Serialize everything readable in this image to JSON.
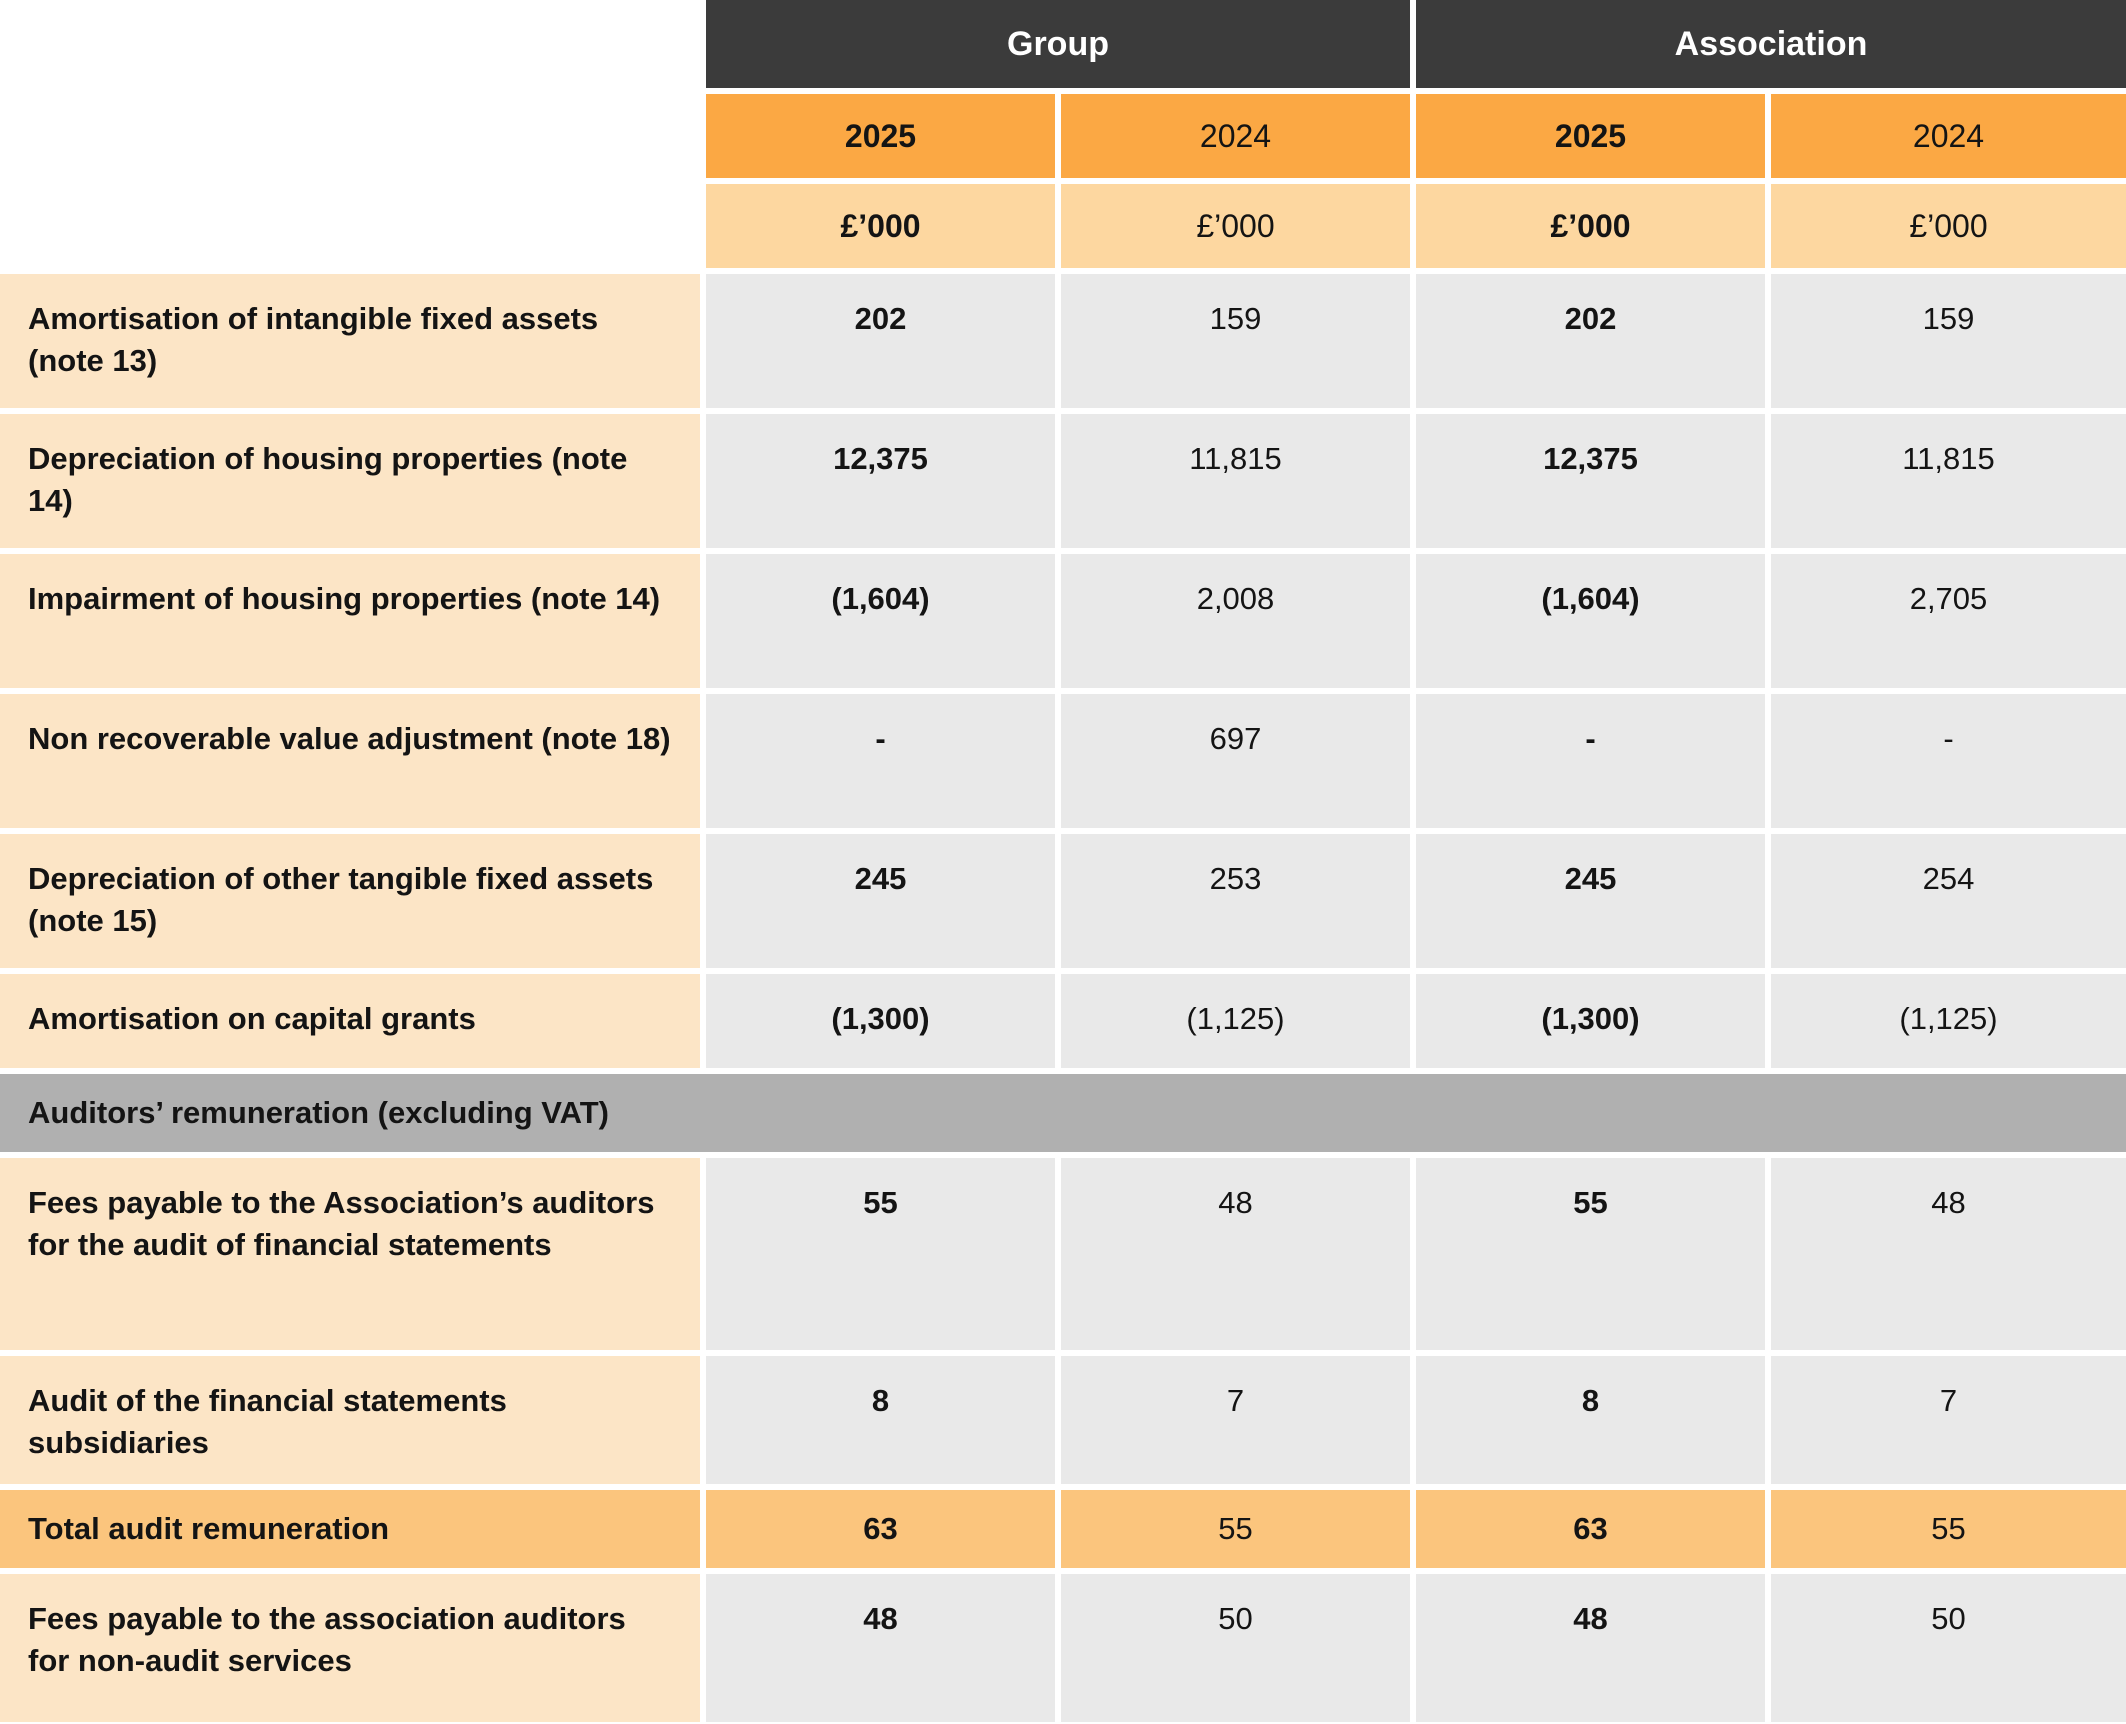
{
  "table": {
    "column_groups": [
      {
        "label": "Group"
      },
      {
        "label": "Association"
      }
    ],
    "year_headers": [
      {
        "label": "2025",
        "emphasis": true
      },
      {
        "label": "2024",
        "emphasis": false
      },
      {
        "label": "2025",
        "emphasis": true
      },
      {
        "label": "2024",
        "emphasis": false
      }
    ],
    "unit_headers": [
      {
        "label": "£’000",
        "emphasis": true
      },
      {
        "label": "£’000",
        "emphasis": false
      },
      {
        "label": "£’000",
        "emphasis": true
      },
      {
        "label": "£’000",
        "emphasis": false
      }
    ],
    "rows": [
      {
        "type": "data",
        "label": "Amortisation of intangible fixed assets (note 13)",
        "values": [
          "202",
          "159",
          "202",
          "159"
        ]
      },
      {
        "type": "data",
        "label": "Depreciation of housing properties (note 14)",
        "values": [
          "12,375",
          "11,815",
          "12,375",
          "11,815"
        ]
      },
      {
        "type": "data",
        "label": "Impairment of housing properties (note 14)",
        "values": [
          "(1,604)",
          "2,008",
          "(1,604)",
          "2,705"
        ]
      },
      {
        "type": "data",
        "label": "Non recoverable value adjustment (note 18)",
        "values": [
          "-",
          "697",
          "-",
          "-"
        ]
      },
      {
        "type": "data",
        "label": "Depreciation of other tangible fixed assets (note 15)",
        "values": [
          "245",
          "253",
          "245",
          "254"
        ]
      },
      {
        "type": "data",
        "label": "Amortisation on capital grants",
        "values": [
          "(1,300)",
          "(1,125)",
          "(1,300)",
          "(1,125)"
        ]
      },
      {
        "type": "section",
        "label": "Auditors’ remuneration (excluding VAT)",
        "values": []
      },
      {
        "type": "data",
        "label": "Fees payable to the Association’s auditors for the audit of financial statements",
        "values": [
          "55",
          "48",
          "55",
          "48"
        ]
      },
      {
        "type": "data",
        "label": "Audit of the financial statements subsidiaries",
        "values": [
          "8",
          "7",
          "8",
          "7"
        ]
      },
      {
        "type": "total",
        "label": "Total audit remuneration",
        "values": [
          "63",
          "55",
          "63",
          "55"
        ]
      },
      {
        "type": "data",
        "label": "Fees payable to the association auditors for non-audit services",
        "values": [
          "48",
          "50",
          "48",
          "50"
        ]
      }
    ],
    "colors": {
      "group_header_bg": "#3b3b3b",
      "group_header_text": "#ffffff",
      "year_header_bg": "#fba844",
      "unit_header_bg": "#fdd7a0",
      "row_label_bg": "#fce5c6",
      "value_cell_bg": "#e9e9e9",
      "section_header_bg": "#b0b0b0",
      "total_row_bg": "#fbc57d",
      "text": "#141414"
    }
  }
}
